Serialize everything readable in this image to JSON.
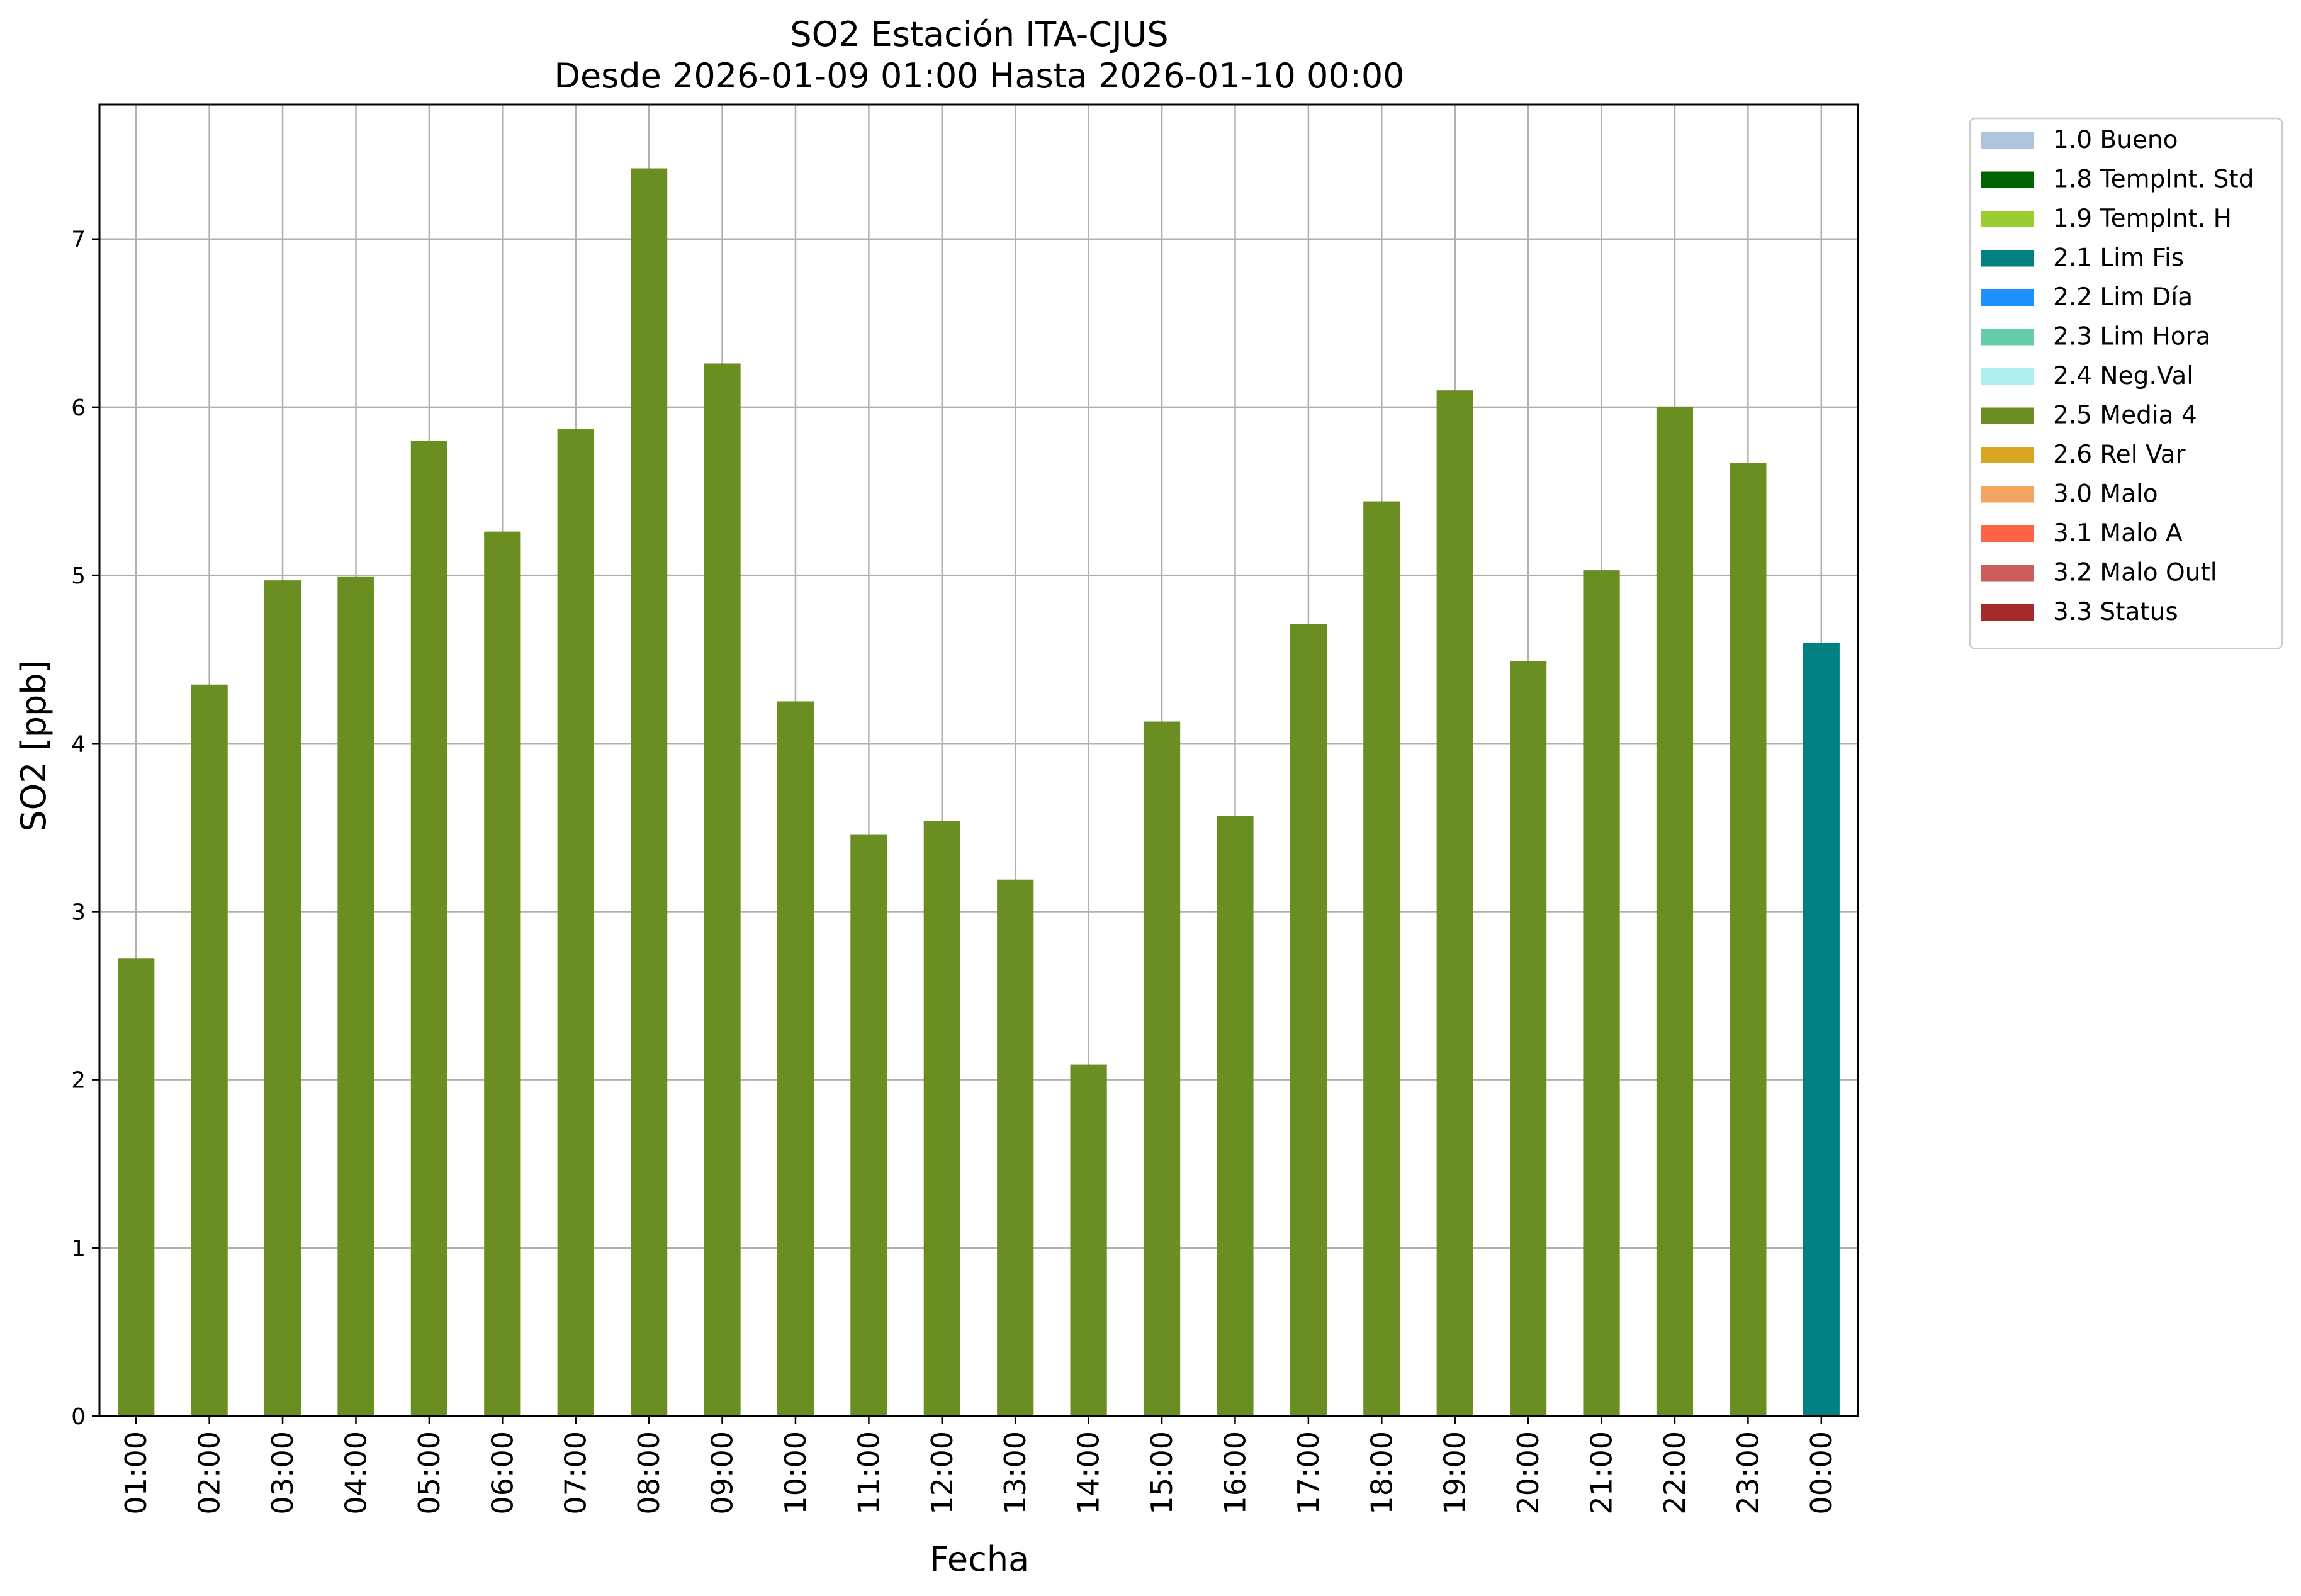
{
  "chart_data": {
    "type": "bar",
    "title": [
      "SO2 Estación ITA-CJUS",
      "Desde 2026-01-09 01:00 Hasta 2026-01-10 00:00"
    ],
    "xlabel": "Fecha",
    "ylabel": "SO2 [ppb]",
    "ylim": [
      0,
      7.8
    ],
    "yticks": [
      0,
      1,
      2,
      3,
      4,
      5,
      6,
      7
    ],
    "grid": true,
    "legend_position": "outside-top-right",
    "categories": [
      "01:00",
      "02:00",
      "03:00",
      "04:00",
      "05:00",
      "06:00",
      "07:00",
      "08:00",
      "09:00",
      "10:00",
      "11:00",
      "12:00",
      "13:00",
      "14:00",
      "15:00",
      "16:00",
      "17:00",
      "18:00",
      "19:00",
      "20:00",
      "21:00",
      "22:00",
      "23:00",
      "00:00"
    ],
    "values": [
      2.72,
      4.35,
      4.97,
      4.99,
      5.8,
      5.26,
      5.87,
      7.42,
      6.26,
      4.25,
      3.46,
      3.54,
      3.19,
      2.09,
      4.13,
      3.57,
      4.71,
      5.44,
      6.1,
      4.49,
      5.03,
      6.0,
      5.67,
      4.6
    ],
    "value_flags": [
      "2.5 Media 4",
      "2.5 Media 4",
      "2.5 Media 4",
      "2.5 Media 4",
      "2.5 Media 4",
      "2.5 Media 4",
      "2.5 Media 4",
      "2.5 Media 4",
      "2.5 Media 4",
      "2.5 Media 4",
      "2.5 Media 4",
      "2.5 Media 4",
      "2.5 Media 4",
      "2.5 Media 4",
      "2.5 Media 4",
      "2.5 Media 4",
      "2.5 Media 4",
      "2.5 Media 4",
      "2.5 Media 4",
      "2.5 Media 4",
      "2.5 Media 4",
      "2.5 Media 4",
      "2.5 Media 4",
      "2.1 Lim Fis"
    ],
    "legend": [
      {
        "label": "1.0 Bueno",
        "color": "#b0c4de"
      },
      {
        "label": "1.8 TempInt. Std",
        "color": "#006400"
      },
      {
        "label": "1.9 TempInt. H",
        "color": "#9acd32"
      },
      {
        "label": "2.1 Lim Fis",
        "color": "#008080"
      },
      {
        "label": "2.2 Lim Día",
        "color": "#1e90ff"
      },
      {
        "label": "2.3 Lim Hora",
        "color": "#66cdaa"
      },
      {
        "label": "2.4 Neg.Val",
        "color": "#afeeee"
      },
      {
        "label": "2.5 Media 4",
        "color": "#6b8e23"
      },
      {
        "label": "2.6 Rel Var",
        "color": "#daa520"
      },
      {
        "label": "3.0 Malo",
        "color": "#f4a460"
      },
      {
        "label": "3.1 Malo A",
        "color": "#ff6347"
      },
      {
        "label": "3.2 Malo Outl",
        "color": "#cd5c5c"
      },
      {
        "label": "3.3 Status",
        "color": "#a52a2a"
      }
    ]
  }
}
